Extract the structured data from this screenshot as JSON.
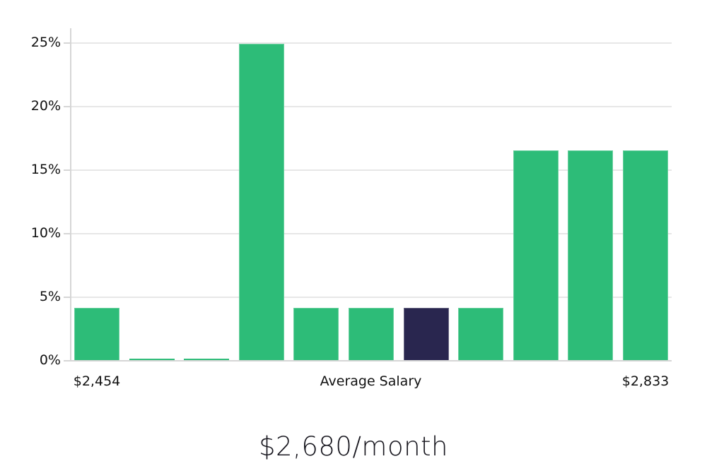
{
  "colors": {
    "bar_fill": "#2dbc78",
    "bar_highlight_fill": "#29264f",
    "bar_edge": "rgba(255,255,255,0.30)",
    "gridline": "#e7e7e7",
    "axis_line": "#d6d6d6",
    "tick_text": "#111111",
    "footer_text": "#17161e",
    "background": "#ffffff"
  },
  "chart_data": {
    "type": "bar",
    "title": "",
    "xlabel": "",
    "ylabel": "",
    "grid": true,
    "legend_position": "none",
    "ylim": [
      0,
      25
    ],
    "yticks": [
      {
        "value": 0,
        "label": "0%"
      },
      {
        "value": 5,
        "label": "5%"
      },
      {
        "value": 10,
        "label": "10%"
      },
      {
        "value": 15,
        "label": "15%"
      },
      {
        "value": 20,
        "label": "20%"
      },
      {
        "value": 25,
        "label": "25%"
      }
    ],
    "values": [
      4.1,
      0.1,
      0.1,
      24.9,
      4.1,
      4.1,
      4.1,
      4.1,
      16.5,
      16.5,
      16.5
    ],
    "highlight_index": 6,
    "x_axis_labels": [
      {
        "text": "$2,454",
        "anchor_bar": 0
      },
      {
        "text": "Average Salary",
        "anchor_bar": null
      },
      {
        "text": "$2,833",
        "anchor_bar": 10
      }
    ]
  },
  "footer": {
    "text": "$2,680/month"
  }
}
